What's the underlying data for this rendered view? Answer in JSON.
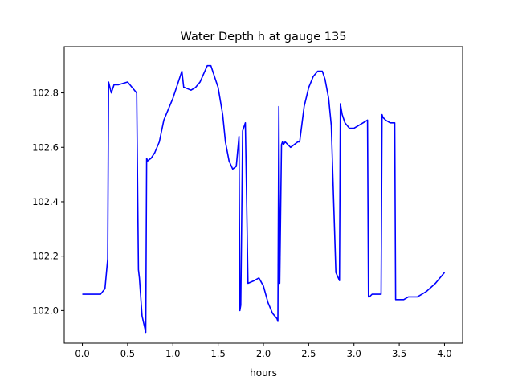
{
  "chart_data": {
    "type": "line",
    "title": "Water Depth h at gauge 135",
    "xlabel": "hours",
    "ylabel": "",
    "xlim": [
      -0.2,
      4.2
    ],
    "ylim": [
      101.88,
      102.97
    ],
    "xticks": [
      0.0,
      0.5,
      1.0,
      1.5,
      2.0,
      2.5,
      3.0,
      3.5,
      4.0
    ],
    "xtick_labels": [
      "0.0",
      "0.5",
      "1.0",
      "1.5",
      "2.0",
      "2.5",
      "3.0",
      "3.5",
      "4.0"
    ],
    "yticks": [
      102.0,
      102.2,
      102.4,
      102.6,
      102.8
    ],
    "ytick_labels": [
      "102.0",
      "102.2",
      "102.4",
      "102.6",
      "102.8"
    ],
    "grid": false,
    "legend": "none",
    "series": [
      {
        "color": "#0000ff",
        "x": [
          0.0,
          0.2,
          0.25,
          0.28,
          0.29,
          0.32,
          0.35,
          0.4,
          0.5,
          0.6,
          0.62,
          0.63,
          0.66,
          0.7,
          0.71,
          0.72,
          0.76,
          0.8,
          0.85,
          0.9,
          1.0,
          1.1,
          1.12,
          1.13,
          1.2,
          1.25,
          1.3,
          1.38,
          1.42,
          1.5,
          1.55,
          1.58,
          1.62,
          1.66,
          1.7,
          1.73,
          1.74,
          1.75,
          1.77,
          1.8,
          1.83,
          1.9,
          1.95,
          2.0,
          2.05,
          2.1,
          2.15,
          2.16,
          2.17,
          2.18,
          2.2,
          2.21,
          2.22,
          2.24,
          2.3,
          2.38,
          2.4,
          2.45,
          2.5,
          2.55,
          2.6,
          2.65,
          2.68,
          2.72,
          2.75,
          2.8,
          2.84,
          2.85,
          2.86,
          2.87,
          2.9,
          2.95,
          3.0,
          3.05,
          3.1,
          3.15,
          3.16,
          3.17,
          3.2,
          3.25,
          3.3,
          3.31,
          3.32,
          3.35,
          3.4,
          3.45,
          3.46,
          3.47,
          3.5,
          3.55,
          3.6,
          3.7,
          3.8,
          3.9,
          4.0
        ],
        "y": [
          102.06,
          102.06,
          102.08,
          102.19,
          102.84,
          102.8,
          102.83,
          102.83,
          102.84,
          102.8,
          102.15,
          102.12,
          101.98,
          101.92,
          102.56,
          102.55,
          102.56,
          102.58,
          102.62,
          102.7,
          102.78,
          102.88,
          102.82,
          102.82,
          102.81,
          102.82,
          102.84,
          102.9,
          102.9,
          102.82,
          102.72,
          102.62,
          102.55,
          102.52,
          102.53,
          102.64,
          102.0,
          102.02,
          102.66,
          102.69,
          102.1,
          102.11,
          102.12,
          102.09,
          102.03,
          101.99,
          101.97,
          101.96,
          102.75,
          102.1,
          102.61,
          102.62,
          102.61,
          102.62,
          102.6,
          102.62,
          102.62,
          102.75,
          102.82,
          102.86,
          102.88,
          102.88,
          102.85,
          102.78,
          102.68,
          102.14,
          102.11,
          102.76,
          102.74,
          102.72,
          102.69,
          102.67,
          102.67,
          102.68,
          102.69,
          102.7,
          102.05,
          102.05,
          102.06,
          102.06,
          102.06,
          102.72,
          102.71,
          102.7,
          102.69,
          102.69,
          102.04,
          102.04,
          102.04,
          102.04,
          102.05,
          102.05,
          102.07,
          102.1,
          102.14
        ]
      }
    ]
  }
}
